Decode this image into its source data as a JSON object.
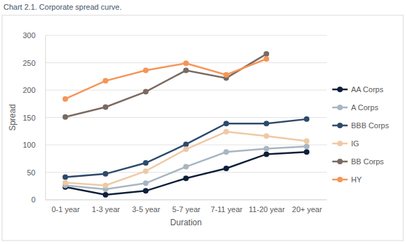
{
  "chart_data": {
    "type": "line",
    "title": "Chart 2.1. Corporate spread curve.",
    "x_label": "Duration",
    "y_label": "Spread",
    "categories": [
      "0-1 year",
      "1-3 year",
      "3-5 year",
      "5-7 year",
      "7-11 year",
      "11-20 year",
      "20+ year"
    ],
    "series": [
      {
        "name": "AA Corps",
        "color": "#0e1f3a",
        "values": [
          23,
          9,
          16,
          39,
          57,
          83,
          87
        ]
      },
      {
        "name": "A Corps",
        "color": "#a7b6c1",
        "values": [
          26,
          19,
          30,
          60,
          87,
          93,
          97
        ]
      },
      {
        "name": "BBB Corps",
        "color": "#2d4a6c",
        "values": [
          41,
          47,
          67,
          101,
          139,
          139,
          147
        ]
      },
      {
        "name": "IG",
        "color": "#efc9a5",
        "values": [
          31,
          26,
          52,
          92,
          124,
          116,
          107
        ]
      },
      {
        "name": "BB Corps",
        "color": "#7a6a61",
        "values": [
          151,
          169,
          197,
          236,
          222,
          266,
          null
        ]
      },
      {
        "name": "HY",
        "color": "#f59558",
        "values": [
          184,
          217,
          236,
          249,
          228,
          257,
          null
        ]
      }
    ],
    "ylim": [
      0,
      300
    ],
    "yticks": [
      0,
      50,
      100,
      150,
      200,
      250,
      300
    ],
    "grid": true,
    "legend": "right",
    "marker": "circle"
  }
}
